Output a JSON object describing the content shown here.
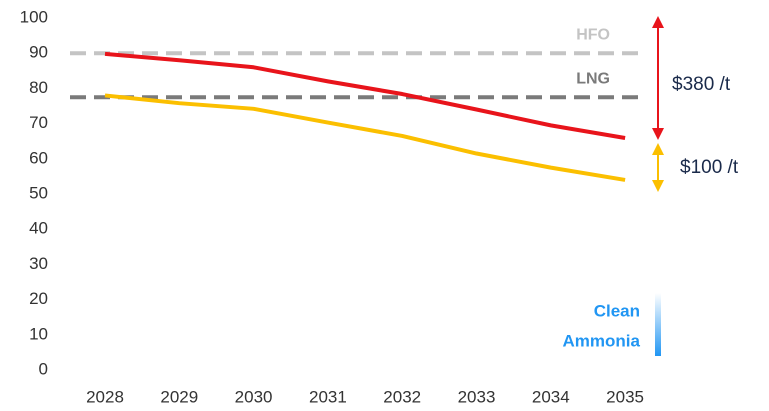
{
  "chart_data": {
    "type": "line",
    "categories": [
      "2028",
      "2029",
      "2030",
      "2031",
      "2032",
      "2033",
      "2034",
      "2035"
    ],
    "series": [
      {
        "color": "#e8141b",
        "values": [
          89.8,
          88,
          86,
          82,
          78.4,
          74,
          69.5,
          65.9
        ]
      },
      {
        "color": "#fbbf00",
        "values": [
          78,
          75.8,
          74.2,
          70.3,
          66.5,
          61.5,
          57.5,
          54
        ]
      }
    ],
    "reference_lines": [
      {
        "name": "HFO",
        "value": 90,
        "color": "#c4c4c4"
      },
      {
        "name": "LNG",
        "value": 77.5,
        "color": "#7a7a7a"
      }
    ],
    "ylim": [
      0,
      100
    ],
    "yticks": [
      0,
      10,
      20,
      30,
      40,
      50,
      60,
      70,
      80,
      90,
      100
    ],
    "grid": false,
    "annotations": [
      {
        "text": "$380 /t",
        "color": "#e8141b"
      },
      {
        "text": "$100 /t",
        "color": "#fbbf00"
      },
      {
        "lines": [
          "Clean",
          "Ammonia"
        ],
        "color": "#2196f3"
      }
    ]
  }
}
